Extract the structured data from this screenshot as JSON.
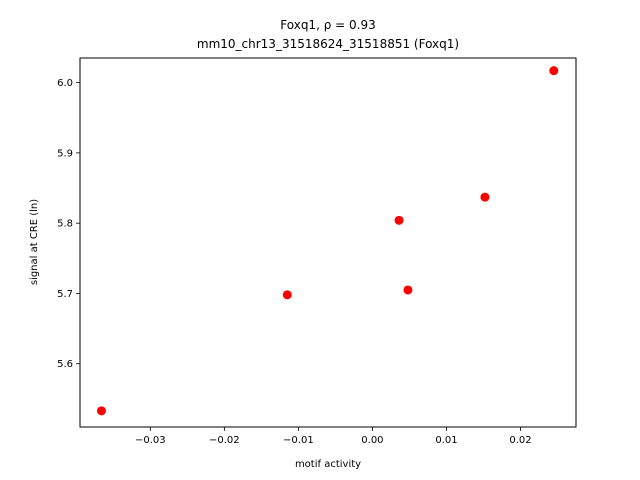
{
  "chart_data": {
    "type": "scatter",
    "title_line1": "Foxq1, ρ = 0.93",
    "title_line2": "mm10_chr13_31518624_31518851 (Foxq1)",
    "xlabel": "motif activity",
    "ylabel": "signal at CRE (ln)",
    "xlim": [
      -0.0395,
      0.0275
    ],
    "ylim": [
      5.51,
      6.035
    ],
    "xticks": [
      -0.03,
      -0.02,
      -0.01,
      0.0,
      0.01,
      0.02
    ],
    "xtick_labels": [
      "−0.03",
      "−0.02",
      "−0.01",
      "0.00",
      "0.01",
      "0.02"
    ],
    "yticks": [
      5.6,
      5.7,
      5.8,
      5.9,
      6.0
    ],
    "ytick_labels": [
      "5.6",
      "5.7",
      "5.8",
      "5.9",
      "6.0"
    ],
    "grid": false,
    "marker_color": "#ff0000",
    "points": [
      {
        "x": -0.0366,
        "y": 5.533
      },
      {
        "x": -0.0115,
        "y": 5.698
      },
      {
        "x": 0.0036,
        "y": 5.804
      },
      {
        "x": 0.0048,
        "y": 5.705
      },
      {
        "x": 0.0152,
        "y": 5.837
      },
      {
        "x": 0.0245,
        "y": 6.017
      }
    ]
  }
}
